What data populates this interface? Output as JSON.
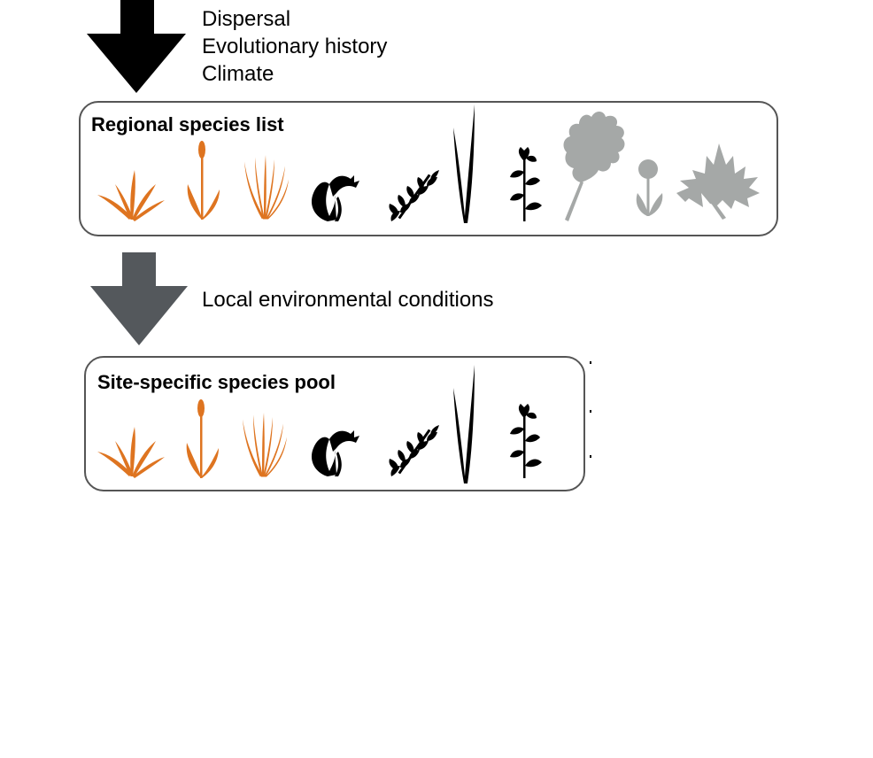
{
  "filters": {
    "regional": [
      "Dispersal",
      "Evolutionary history",
      "Climate"
    ],
    "local": [
      "Local environmental conditions"
    ]
  },
  "regional_box": {
    "title": "Regional species list",
    "species_icons": [
      "orange-grass-icon",
      "orange-cattail-icon",
      "orange-sedge-icon",
      "black-bellflower-icon",
      "black-fern-icon",
      "black-blade-icon",
      "black-vine-flower-icon",
      "gray-oak-leaf-icon",
      "gray-round-flower-icon",
      "gray-maple-leaf-icon"
    ]
  },
  "site_box": {
    "title": "Site-specific species pool",
    "species_icons": [
      "orange-grass-icon",
      "orange-cattail-icon",
      "orange-sedge-icon",
      "black-bellflower-icon",
      "black-fern-icon",
      "black-blade-icon",
      "black-vine-flower-icon"
    ]
  },
  "colors": {
    "orange": "#DE7420",
    "black": "#000000",
    "gray": "#A5A8A7",
    "dark_arrow": "#54585C",
    "border": "#555555"
  }
}
